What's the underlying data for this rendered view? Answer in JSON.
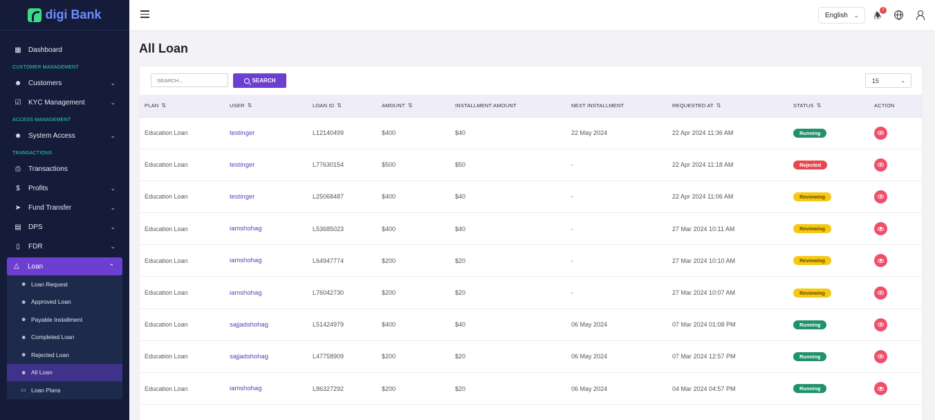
{
  "brand": {
    "name": "digi Bank"
  },
  "sidebar": {
    "dashboard": "Dashboard",
    "sections": {
      "customer": "CUSTOMER MANAGEMENT",
      "access": "ACCESS MANAGEMENT",
      "transactions": "TRANSACTIONS"
    },
    "items": {
      "customers": "Customers",
      "kyc": "KYC Management",
      "system_access": "System Access",
      "transactions": "Transactions",
      "profits": "Profits",
      "fund_transfer": "Fund Transfer",
      "dps": "DPS",
      "fdr": "FDR",
      "loan": "Loan"
    },
    "loan_sub": [
      "Loan Request",
      "Approved Loan",
      "Payable Installment",
      "Completed Loan",
      "Rejected Loan",
      "All Loan",
      "Loan Plans"
    ],
    "active_sub": "All Loan"
  },
  "topbar": {
    "language": "English",
    "notification_count": "7"
  },
  "page": {
    "title": "All Loan"
  },
  "toolbar": {
    "search_placeholder": "SEARCH...",
    "search_label": "SEARCH",
    "per_page": "15"
  },
  "table": {
    "headers": {
      "plan": "PLAN",
      "user": "USER",
      "loan_id": "LOAN ID",
      "amount": "AMOUNT",
      "installment_amount": "INSTALLMENT AMOUNT",
      "next_installment": "NEXT INSTALLMENT",
      "requested_at": "REQUESTED AT",
      "status": "STATUS",
      "action": "ACTION"
    },
    "rows": [
      {
        "plan": "Education Loan",
        "user": "testinger",
        "loan_id": "L12140499",
        "amount": "$400",
        "installment": "$40",
        "next": "22 May 2024",
        "requested": "22 Apr 2024 11:36 AM",
        "status": "Running"
      },
      {
        "plan": "Education Loan",
        "user": "testinger",
        "loan_id": "L77630154",
        "amount": "$500",
        "installment": "$50",
        "next": "-",
        "requested": "22 Apr 2024 11:18 AM",
        "status": "Rejected"
      },
      {
        "plan": "Education Loan",
        "user": "testinger",
        "loan_id": "L25068487",
        "amount": "$400",
        "installment": "$40",
        "next": "-",
        "requested": "22 Apr 2024 11:06 AM",
        "status": "Reviewing"
      },
      {
        "plan": "Education Loan",
        "user": "iamshohag",
        "loan_id": "L53685023",
        "amount": "$400",
        "installment": "$40",
        "next": "-",
        "requested": "27 Mar 2024 10:11 AM",
        "status": "Reviewing"
      },
      {
        "plan": "Education Loan",
        "user": "iamshohag",
        "loan_id": "L64947774",
        "amount": "$200",
        "installment": "$20",
        "next": "-",
        "requested": "27 Mar 2024 10:10 AM",
        "status": "Reviewing"
      },
      {
        "plan": "Education Loan",
        "user": "iamshohag",
        "loan_id": "L76042730",
        "amount": "$200",
        "installment": "$20",
        "next": "-",
        "requested": "27 Mar 2024 10:07 AM",
        "status": "Reviewing"
      },
      {
        "plan": "Education Loan",
        "user": "sajjadshohag",
        "loan_id": "L51424979",
        "amount": "$400",
        "installment": "$40",
        "next": "06 May 2024",
        "requested": "07 Mar 2024 01:08 PM",
        "status": "Running"
      },
      {
        "plan": "Education Loan",
        "user": "sajjadshohag",
        "loan_id": "L47758909",
        "amount": "$200",
        "installment": "$20",
        "next": "06 May 2024",
        "requested": "07 Mar 2024 12:57 PM",
        "status": "Running"
      },
      {
        "plan": "Education Loan",
        "user": "iamshohag",
        "loan_id": "L86327292",
        "amount": "$200",
        "installment": "$20",
        "next": "06 May 2024",
        "requested": "04 Mar 2024 04:57 PM",
        "status": "Running"
      }
    ]
  },
  "colors": {
    "sidebar_bg": "#141c3a",
    "accent": "#6c3fd1",
    "running": "#20916e",
    "rejected": "#e5484d",
    "reviewing": "#f6c810",
    "action": "#ef4f6b"
  },
  "icons": {
    "dashboard": "grid-icon",
    "customers": "users-icon",
    "kyc": "check-square-icon",
    "system_access": "users-icon",
    "transactions": "cast-icon",
    "profits": "dollar-icon",
    "fund_transfer": "send-icon",
    "dps": "archive-icon",
    "fdr": "book-icon",
    "loan": "warning-icon",
    "action": "eye-icon"
  }
}
